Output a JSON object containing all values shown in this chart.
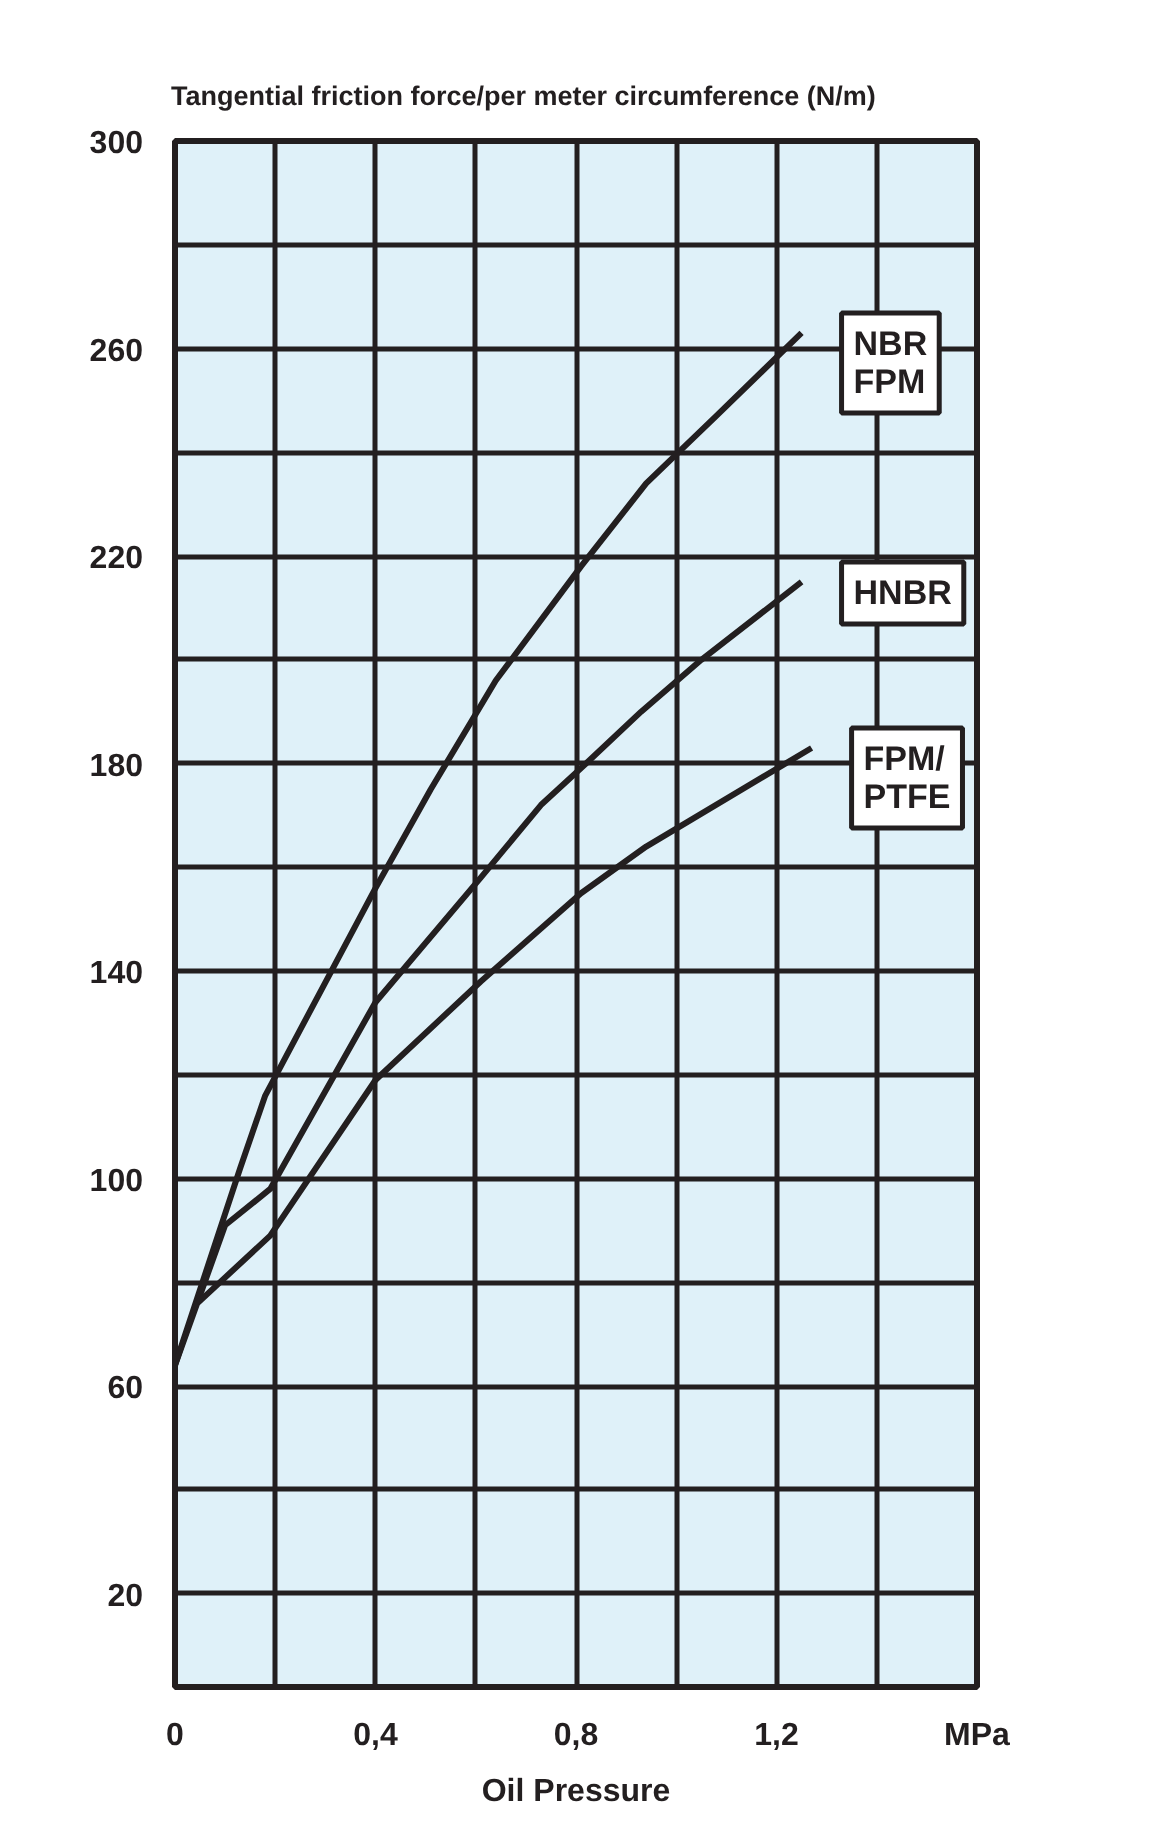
{
  "chart_data": {
    "type": "line",
    "ylabel": "Tangential friction force/per meter circumference (N/m)",
    "xlabel": "Oil Pressure",
    "xlim": [
      0,
      1.6
    ],
    "ylim": [
      2,
      300
    ],
    "xticks": [
      0,
      {
        "value": 0.2,
        "label": null
      },
      {
        "value": 0.4,
        "label": "0,4"
      },
      {
        "value": 0.6,
        "label": null
      },
      {
        "value": 0.8,
        "label": "0,8"
      },
      {
        "value": 1.0,
        "label": null
      },
      {
        "value": 1.2,
        "label": "1,2"
      },
      {
        "value": 1.4,
        "label": null
      },
      {
        "value": 1.6,
        "label": "MPa"
      }
    ],
    "yticks": [
      20,
      {
        "value": 40,
        "label": null
      },
      60,
      {
        "value": 80,
        "label": null
      },
      100,
      {
        "value": 120,
        "label": null
      },
      140,
      {
        "value": 160,
        "label": null
      },
      180,
      {
        "value": 200,
        "label": null
      },
      220,
      {
        "value": 240,
        "label": null
      },
      260,
      {
        "value": 280,
        "label": null
      },
      300
    ],
    "grid": true,
    "marker": "none",
    "line_style": "solid",
    "series": [
      {
        "name": "NBR\nFPM",
        "color": "#231f20",
        "x": [
          0,
          0.13,
          0.18,
          0.4,
          0.51,
          0.64,
          0.81,
          0.94,
          1.08,
          1.25
        ],
        "values": [
          64,
          102,
          116,
          156,
          175,
          196,
          218,
          234,
          247,
          263
        ]
      },
      {
        "name": "HNBR",
        "color": "#231f20",
        "x": [
          0,
          0.1,
          0.19,
          0.4,
          0.61,
          0.73,
          0.82,
          0.93,
          1.05,
          1.25
        ],
        "values": [
          64,
          91,
          98,
          134,
          158,
          172,
          180,
          190,
          200,
          215
        ]
      },
      {
        "name": "FPM/\nPTFE",
        "color": "#231f20",
        "x": [
          0.045,
          0.19,
          0.4,
          0.61,
          0.81,
          0.94,
          1.27
        ],
        "values": [
          76,
          89,
          119,
          138,
          155,
          164,
          183
        ]
      }
    ]
  }
}
